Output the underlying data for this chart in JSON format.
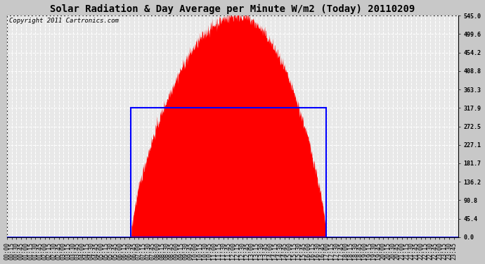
{
  "title": "Solar Radiation & Day Average per Minute W/m2 (Today) 20110209",
  "copyright_text": "Copyright 2011 Cartronics.com",
  "background_color": "#c8c8c8",
  "plot_bg_color": "#e8e8e8",
  "y_ticks": [
    0.0,
    45.4,
    90.8,
    136.2,
    181.7,
    227.1,
    272.5,
    317.9,
    363.3,
    408.8,
    454.2,
    499.6,
    545.0
  ],
  "y_max": 545.0,
  "solar_color": "#ff0000",
  "avg_rect_color": "#0000ff",
  "avg_level": 317.9,
  "sunrise_minutes": 395,
  "sunset_minutes": 1017,
  "peak_minute": 735,
  "peak_value": 545.0,
  "x_tick_interval": 15,
  "total_minutes": 1440,
  "grid_color": "#aaaaaa",
  "grid_dash_color": "#ffffff",
  "title_fontsize": 10,
  "tick_fontsize": 6,
  "copyright_fontsize": 6.5
}
